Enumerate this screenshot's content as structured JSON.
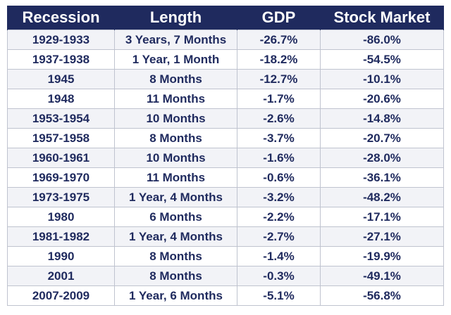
{
  "chart_data": {
    "type": "table",
    "columns": [
      "Recession",
      "Length",
      "GDP",
      "Stock Market"
    ],
    "rows": [
      {
        "recession": "1929-1933",
        "length": "3 Years, 7 Months",
        "gdp": "-26.7%",
        "stock_market": "-86.0%"
      },
      {
        "recession": "1937-1938",
        "length": "1 Year, 1 Month",
        "gdp": "-18.2%",
        "stock_market": "-54.5%"
      },
      {
        "recession": "1945",
        "length": "8 Months",
        "gdp": "-12.7%",
        "stock_market": "-10.1%"
      },
      {
        "recession": "1948",
        "length": "11 Months",
        "gdp": "-1.7%",
        "stock_market": "-20.6%"
      },
      {
        "recession": "1953-1954",
        "length": "10 Months",
        "gdp": "-2.6%",
        "stock_market": "-14.8%"
      },
      {
        "recession": "1957-1958",
        "length": "8 Months",
        "gdp": "-3.7%",
        "stock_market": "-20.7%"
      },
      {
        "recession": "1960-1961",
        "length": "10 Months",
        "gdp": "-1.6%",
        "stock_market": "-28.0%"
      },
      {
        "recession": "1969-1970",
        "length": "11 Months",
        "gdp": "-0.6%",
        "stock_market": "-36.1%"
      },
      {
        "recession": "1973-1975",
        "length": "1 Year, 4 Months",
        "gdp": "-3.2%",
        "stock_market": "-48.2%"
      },
      {
        "recession": "1980",
        "length": "6 Months",
        "gdp": "-2.2%",
        "stock_market": "-17.1%"
      },
      {
        "recession": "1981-1982",
        "length": "1 Year, 4 Months",
        "gdp": "-2.7%",
        "stock_market": "-27.1%"
      },
      {
        "recession": "1990",
        "length": "8 Months",
        "gdp": "-1.4%",
        "stock_market": "-19.9%"
      },
      {
        "recession": "2001",
        "length": "8 Months",
        "gdp": "-0.3%",
        "stock_market": "-49.1%"
      },
      {
        "recession": "2007-2009",
        "length": "1 Year, 6 Months",
        "gdp": "-5.1%",
        "stock_market": "-56.8%"
      }
    ]
  },
  "colors": {
    "header_bg": "#1f2a5e",
    "header_text": "#ffffff",
    "cell_text": "#1f2a5e",
    "stripe": "#f2f3f7",
    "grid": "#bfc3cf"
  }
}
